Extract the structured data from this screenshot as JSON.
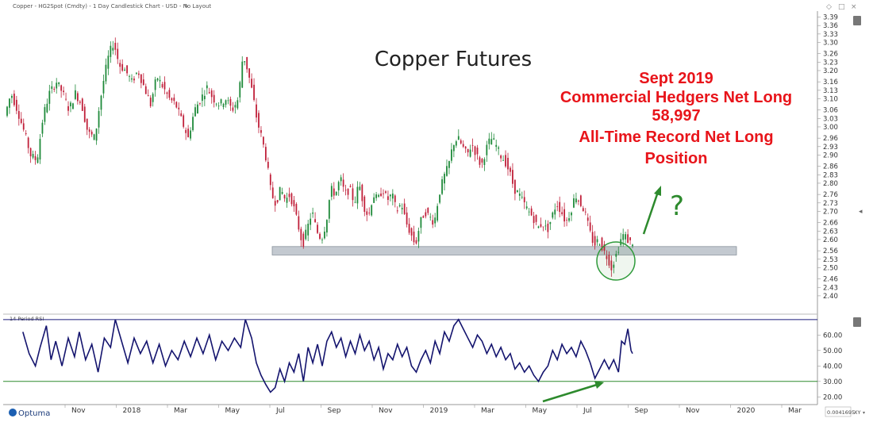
{
  "header": {
    "title_line": "Copper - HG2Spot (Cmdty) - 1 Day Candlestick Chart - USD - No Layout"
  },
  "chart_data": [
    {
      "type": "candlestick",
      "title": "Copper Futures",
      "annotation_lines": [
        "Sept 2019",
        "Commercial Hedgers Net Long",
        "58,997",
        "All-Time Record Net Long",
        "Position"
      ],
      "question_mark": "?",
      "y_ticks": [
        "3.39",
        "3.36",
        "3.33",
        "3.30",
        "3.26",
        "3.23",
        "3.20",
        "3.16",
        "3.13",
        "3.10",
        "3.06",
        "3.03",
        "3.00",
        "2.96",
        "2.93",
        "2.90",
        "2.86",
        "2.83",
        "2.80",
        "2.76",
        "2.73",
        "2.70",
        "2.66",
        "2.63",
        "2.60",
        "2.56",
        "2.53",
        "2.50",
        "2.46",
        "2.43",
        "2.40"
      ],
      "ylim": [
        2.38,
        3.4
      ],
      "support_band": [
        2.545,
        2.575
      ],
      "x_ticks": [
        "Nov",
        "2018",
        "Mar",
        "May",
        "Jul",
        "Sep",
        "Nov",
        "2019",
        "Mar",
        "May",
        "Jul",
        "Sep",
        "Nov",
        "2020",
        "Mar"
      ],
      "series": [
        {
          "path": [
            [
              0,
              3.04
            ],
            [
              8,
              3.12
            ],
            [
              16,
              3.06
            ],
            [
              25,
              2.98
            ],
            [
              33,
              2.9
            ],
            [
              41,
              2.88
            ],
            [
              49,
              3.04
            ],
            [
              57,
              3.12
            ],
            [
              66,
              3.16
            ],
            [
              74,
              3.12
            ],
            [
              82,
              3.06
            ],
            [
              90,
              3.12
            ],
            [
              98,
              3.08
            ],
            [
              106,
              2.98
            ],
            [
              115,
              2.96
            ],
            [
              121,
              3.08
            ],
            [
              127,
              3.18
            ],
            [
              133,
              3.26
            ],
            [
              139,
              3.3
            ],
            [
              146,
              3.22
            ],
            [
              154,
              3.2
            ],
            [
              162,
              3.16
            ],
            [
              170,
              3.2
            ],
            [
              178,
              3.14
            ],
            [
              186,
              3.08
            ],
            [
              194,
              3.18
            ],
            [
              202,
              3.14
            ],
            [
              210,
              3.1
            ],
            [
              218,
              3.08
            ],
            [
              226,
              3.02
            ],
            [
              234,
              2.96
            ],
            [
              242,
              3.06
            ],
            [
              250,
              3.1
            ],
            [
              258,
              3.14
            ],
            [
              266,
              3.1
            ],
            [
              274,
              3.08
            ],
            [
              282,
              3.1
            ],
            [
              290,
              3.06
            ],
            [
              298,
              3.1
            ],
            [
              304,
              3.26
            ],
            [
              310,
              3.2
            ],
            [
              316,
              3.12
            ],
            [
              322,
              3.02
            ],
            [
              328,
              2.96
            ],
            [
              334,
              2.88
            ],
            [
              340,
              2.76
            ],
            [
              346,
              2.73
            ],
            [
              352,
              2.78
            ],
            [
              358,
              2.74
            ],
            [
              364,
              2.76
            ],
            [
              370,
              2.7
            ],
            [
              376,
              2.63
            ],
            [
              380,
              2.58
            ],
            [
              386,
              2.64
            ],
            [
              392,
              2.7
            ],
            [
              398,
              2.63
            ],
            [
              404,
              2.6
            ],
            [
              410,
              2.66
            ],
            [
              416,
              2.78
            ],
            [
              422,
              2.76
            ],
            [
              428,
              2.82
            ],
            [
              434,
              2.76
            ],
            [
              440,
              2.78
            ],
            [
              446,
              2.73
            ],
            [
              452,
              2.8
            ],
            [
              458,
              2.72
            ],
            [
              464,
              2.68
            ],
            [
              470,
              2.76
            ],
            [
              476,
              2.74
            ],
            [
              482,
              2.78
            ],
            [
              488,
              2.74
            ],
            [
              494,
              2.76
            ],
            [
              500,
              2.7
            ],
            [
              506,
              2.73
            ],
            [
              512,
              2.66
            ],
            [
              518,
              2.62
            ],
            [
              524,
              2.58
            ],
            [
              530,
              2.66
            ],
            [
              536,
              2.7
            ],
            [
              542,
              2.68
            ],
            [
              548,
              2.66
            ],
            [
              554,
              2.76
            ],
            [
              560,
              2.82
            ],
            [
              566,
              2.86
            ],
            [
              572,
              2.94
            ],
            [
              578,
              2.96
            ],
            [
              584,
              2.93
            ],
            [
              590,
              2.9
            ],
            [
              596,
              2.94
            ],
            [
              602,
              2.9
            ],
            [
              608,
              2.86
            ],
            [
              614,
              2.92
            ],
            [
              620,
              2.96
            ],
            [
              626,
              2.94
            ],
            [
              632,
              2.9
            ],
            [
              638,
              2.88
            ],
            [
              644,
              2.84
            ],
            [
              650,
              2.78
            ],
            [
              656,
              2.76
            ],
            [
              662,
              2.73
            ],
            [
              668,
              2.7
            ],
            [
              674,
              2.68
            ],
            [
              680,
              2.64
            ],
            [
              686,
              2.66
            ],
            [
              692,
              2.63
            ],
            [
              698,
              2.68
            ],
            [
              704,
              2.73
            ],
            [
              710,
              2.7
            ],
            [
              716,
              2.66
            ],
            [
              722,
              2.7
            ],
            [
              728,
              2.76
            ],
            [
              734,
              2.73
            ],
            [
              740,
              2.7
            ],
            [
              746,
              2.63
            ],
            [
              752,
              2.58
            ],
            [
              758,
              2.6
            ],
            [
              764,
              2.56
            ],
            [
              770,
              2.53
            ],
            [
              774,
              2.5
            ],
            [
              778,
              2.53
            ],
            [
              782,
              2.56
            ],
            [
              786,
              2.6
            ],
            [
              790,
              2.62
            ],
            [
              794,
              2.6
            ],
            [
              798,
              2.59
            ]
          ]
        }
      ]
    },
    {
      "type": "line",
      "title": "14 Period RSI",
      "y_ticks": [
        "60.00",
        "50.00",
        "40.00",
        "30.00",
        "20.00"
      ],
      "ylim": [
        15,
        73
      ],
      "reference_lines": [
        70,
        30
      ],
      "series": [
        {
          "path": [
            [
              20,
              62
            ],
            [
              28,
              48
            ],
            [
              36,
              40
            ],
            [
              42,
              52
            ],
            [
              50,
              66
            ],
            [
              56,
              44
            ],
            [
              62,
              56
            ],
            [
              70,
              40
            ],
            [
              78,
              58
            ],
            [
              86,
              46
            ],
            [
              92,
              62
            ],
            [
              100,
              44
            ],
            [
              108,
              54
            ],
            [
              116,
              36
            ],
            [
              124,
              58
            ],
            [
              132,
              52
            ],
            [
              138,
              70
            ],
            [
              146,
              56
            ],
            [
              154,
              42
            ],
            [
              162,
              58
            ],
            [
              170,
              48
            ],
            [
              178,
              56
            ],
            [
              186,
              42
            ],
            [
              194,
              54
            ],
            [
              202,
              40
            ],
            [
              210,
              50
            ],
            [
              218,
              44
            ],
            [
              226,
              56
            ],
            [
              234,
              46
            ],
            [
              242,
              58
            ],
            [
              250,
              48
            ],
            [
              258,
              60
            ],
            [
              266,
              44
            ],
            [
              274,
              56
            ],
            [
              282,
              50
            ],
            [
              290,
              58
            ],
            [
              298,
              52
            ],
            [
              304,
              70
            ],
            [
              312,
              58
            ],
            [
              318,
              42
            ],
            [
              324,
              34
            ],
            [
              330,
              28
            ],
            [
              336,
              23
            ],
            [
              342,
              26
            ],
            [
              348,
              38
            ],
            [
              354,
              30
            ],
            [
              360,
              42
            ],
            [
              366,
              36
            ],
            [
              372,
              48
            ],
            [
              378,
              30
            ],
            [
              384,
              52
            ],
            [
              390,
              42
            ],
            [
              396,
              54
            ],
            [
              402,
              40
            ],
            [
              408,
              56
            ],
            [
              414,
              62
            ],
            [
              420,
              52
            ],
            [
              426,
              58
            ],
            [
              432,
              46
            ],
            [
              438,
              56
            ],
            [
              444,
              48
            ],
            [
              450,
              60
            ],
            [
              456,
              50
            ],
            [
              462,
              56
            ],
            [
              468,
              44
            ],
            [
              474,
              52
            ],
            [
              480,
              38
            ],
            [
              486,
              48
            ],
            [
              492,
              44
            ],
            [
              498,
              54
            ],
            [
              504,
              46
            ],
            [
              510,
              52
            ],
            [
              516,
              40
            ],
            [
              522,
              36
            ],
            [
              528,
              44
            ],
            [
              534,
              50
            ],
            [
              540,
              42
            ],
            [
              546,
              56
            ],
            [
              552,
              48
            ],
            [
              558,
              62
            ],
            [
              564,
              56
            ],
            [
              570,
              66
            ],
            [
              576,
              70
            ],
            [
              582,
              64
            ],
            [
              588,
              58
            ],
            [
              594,
              52
            ],
            [
              600,
              60
            ],
            [
              606,
              56
            ],
            [
              612,
              48
            ],
            [
              618,
              54
            ],
            [
              624,
              46
            ],
            [
              630,
              52
            ],
            [
              636,
              44
            ],
            [
              642,
              48
            ],
            [
              648,
              38
            ],
            [
              654,
              42
            ],
            [
              660,
              36
            ],
            [
              666,
              40
            ],
            [
              672,
              34
            ],
            [
              678,
              30
            ],
            [
              684,
              36
            ],
            [
              690,
              40
            ],
            [
              696,
              50
            ],
            [
              702,
              44
            ],
            [
              708,
              54
            ],
            [
              714,
              48
            ],
            [
              720,
              52
            ],
            [
              726,
              46
            ],
            [
              732,
              56
            ],
            [
              738,
              50
            ],
            [
              744,
              42
            ],
            [
              750,
              32
            ],
            [
              756,
              38
            ],
            [
              762,
              44
            ],
            [
              768,
              38
            ],
            [
              774,
              44
            ],
            [
              780,
              36
            ],
            [
              784,
              56
            ],
            [
              788,
              54
            ],
            [
              792,
              64
            ],
            [
              796,
              50
            ],
            [
              798,
              48
            ]
          ]
        }
      ]
    }
  ],
  "footer": {
    "logo_text": "Optuma",
    "readout": "0.0041695",
    "xy_label": "XY"
  }
}
